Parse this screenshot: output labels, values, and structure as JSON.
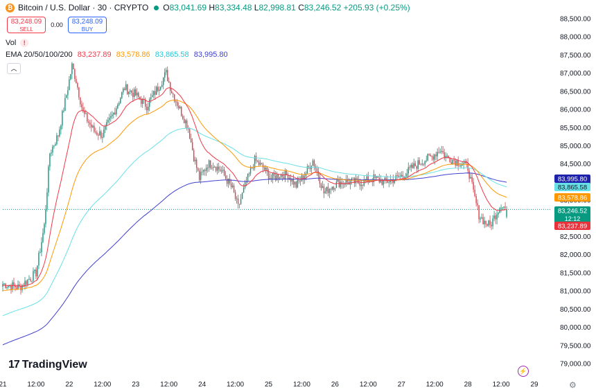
{
  "header": {
    "coin_glyph": "₿",
    "symbol": "Bitcoin / U.S. Dollar · 30 · CRYPTO",
    "open_label": "O",
    "open": "83,041.69",
    "high_label": "H",
    "high": "83,334.48",
    "low_label": "L",
    "low": "82,998.81",
    "close_label": "C",
    "close": "83,246.52",
    "change": "+205.93 (+0.25%)"
  },
  "trade": {
    "sell_price": "83,248.09",
    "sell_label": "SELL",
    "spread": "0.00",
    "buy_price": "83,248.09",
    "buy_label": "BUY"
  },
  "vol_label": "Vol",
  "ema": {
    "label": "EMA 20/50/100/200",
    "ema20": "83,237.89",
    "ema50": "83,578.86",
    "ema100": "83,865.58",
    "ema200": "83,995.80"
  },
  "branding": {
    "logo": "TradingView",
    "logo_mark": "17"
  },
  "colors": {
    "up": "#089981",
    "down": "#f23645",
    "ema20": "#f23645",
    "ema50": "#ff9800",
    "ema100": "#67e0e8",
    "ema200": "#3f3fcf"
  },
  "chart_data": {
    "type": "candlestick",
    "symbol": "BTCUSD",
    "interval": "30",
    "xlim": [
      0,
      396
    ],
    "ylim": [
      79000,
      88500
    ],
    "yticks": [
      "88,500.00",
      "88,000.00",
      "87,500.00",
      "87,000.00",
      "86,500.00",
      "86,000.00",
      "85,500.00",
      "85,000.00",
      "84,500.00",
      "84,000.00",
      "83,500.00",
      "83,000.00",
      "82,500.00",
      "82,000.00",
      "81,500.00",
      "81,000.00",
      "80,500.00",
      "80,000.00",
      "79,500.00",
      "79,000.00"
    ],
    "ytick_values": [
      88500,
      88000,
      87500,
      87000,
      86500,
      86000,
      85500,
      85000,
      84500,
      84000,
      83500,
      83000,
      82500,
      82000,
      81500,
      81000,
      80500,
      80000,
      79500,
      79000
    ],
    "xticks": [
      {
        "label": "21",
        "x": 0
      },
      {
        "label": "12:00",
        "x": 24
      },
      {
        "label": "22",
        "x": 48
      },
      {
        "label": "12:00",
        "x": 72
      },
      {
        "label": "23",
        "x": 96
      },
      {
        "label": "12:00",
        "x": 120
      },
      {
        "label": "24",
        "x": 144
      },
      {
        "label": "12:00",
        "x": 168
      },
      {
        "label": "25",
        "x": 192
      },
      {
        "label": "12:00",
        "x": 216
      },
      {
        "label": "26",
        "x": 240
      },
      {
        "label": "12:00",
        "x": 264
      },
      {
        "label": "27",
        "x": 288
      },
      {
        "label": "12:00",
        "x": 312
      },
      {
        "label": "28",
        "x": 336
      },
      {
        "label": "12:00",
        "x": 360
      },
      {
        "label": "29",
        "x": 384
      }
    ],
    "close_anchors": [
      [
        0,
        81200
      ],
      [
        12,
        81100
      ],
      [
        24,
        81500
      ],
      [
        30,
        82800
      ],
      [
        34,
        84800
      ],
      [
        40,
        85300
      ],
      [
        46,
        86400
      ],
      [
        50,
        87200
      ],
      [
        53,
        86800
      ],
      [
        58,
        85900
      ],
      [
        66,
        85400
      ],
      [
        72,
        85300
      ],
      [
        80,
        85900
      ],
      [
        88,
        86600
      ],
      [
        96,
        86400
      ],
      [
        104,
        86100
      ],
      [
        112,
        86600
      ],
      [
        118,
        87000
      ],
      [
        122,
        86500
      ],
      [
        128,
        86000
      ],
      [
        134,
        85500
      ],
      [
        138,
        84700
      ],
      [
        142,
        84100
      ],
      [
        148,
        84500
      ],
      [
        152,
        84500
      ],
      [
        158,
        84300
      ],
      [
        166,
        83800
      ],
      [
        170,
        83300
      ],
      [
        176,
        84000
      ],
      [
        182,
        84600
      ],
      [
        188,
        84400
      ],
      [
        194,
        84100
      ],
      [
        200,
        84200
      ],
      [
        206,
        84200
      ],
      [
        212,
        83900
      ],
      [
        218,
        84200
      ],
      [
        224,
        84600
      ],
      [
        228,
        84200
      ],
      [
        232,
        83700
      ],
      [
        238,
        83900
      ],
      [
        244,
        84000
      ],
      [
        252,
        84000
      ],
      [
        260,
        84000
      ],
      [
        268,
        84100
      ],
      [
        276,
        84000
      ],
      [
        284,
        84100
      ],
      [
        290,
        84200
      ],
      [
        296,
        84400
      ],
      [
        304,
        84600
      ],
      [
        310,
        84700
      ],
      [
        316,
        84900
      ],
      [
        320,
        84700
      ],
      [
        326,
        84600
      ],
      [
        332,
        84500
      ],
      [
        336,
        84400
      ],
      [
        340,
        83700
      ],
      [
        344,
        83100
      ],
      [
        348,
        82900
      ],
      [
        352,
        82800
      ],
      [
        356,
        83100
      ],
      [
        360,
        83400
      ],
      [
        364,
        83250
      ]
    ],
    "last_close": 83246.52,
    "series": [
      {
        "name": "EMA 20",
        "value": 83237.89
      },
      {
        "name": "EMA 50",
        "value": 83578.86
      },
      {
        "name": "EMA 100",
        "value": 83865.58
      },
      {
        "name": "EMA 200",
        "value": 83995.8
      }
    ],
    "ema200_start": 79500,
    "ema100_start": 80300,
    "countdown": "12:12",
    "grid": false
  }
}
